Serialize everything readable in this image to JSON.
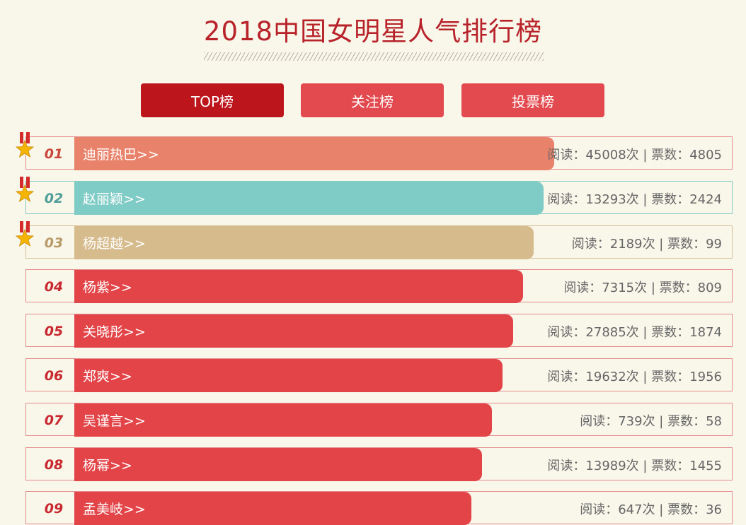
{
  "title": "2018中国女明星人气排行榜",
  "tabs": [
    {
      "label": "TOP榜",
      "active": true
    },
    {
      "label": "关注榜",
      "active": false
    },
    {
      "label": "投票榜",
      "active": false
    }
  ],
  "colors": {
    "title": "#b8232a",
    "tab_active": "#bd151c",
    "tab_inactive": "#e24a4f",
    "row_border": "#e58c8f",
    "medal_ribbon": "#d42b2b",
    "medal_star": "#f4b400"
  },
  "rankings": [
    {
      "rank": "01",
      "name": "迪丽热巴>>",
      "stats": "阅读：45008次 | 票数：4805",
      "bar_color": "#e9826a",
      "rank_color": "#c9473a",
      "medal": true,
      "border_color": "#e58c8f"
    },
    {
      "rank": "02",
      "name": "赵丽颖>>",
      "stats": "阅读：13293次 | 票数：2424",
      "bar_color": "#7fcbc5",
      "rank_color": "#4f9e99",
      "medal": true,
      "border_color": "#86cbc4"
    },
    {
      "rank": "03",
      "name": "杨超越>>",
      "stats": "阅读：2189次 | 票数：99",
      "bar_color": "#d6bb8c",
      "rank_color": "#b79a66",
      "medal": true,
      "border_color": "#d7c296"
    },
    {
      "rank": "04",
      "name": "杨紫>>",
      "stats": "阅读：7315次 | 票数：809",
      "bar_color": "#e24448",
      "rank_color": "#c8282e",
      "medal": false,
      "border_color": "#e58c8f"
    },
    {
      "rank": "05",
      "name": "关晓彤>>",
      "stats": "阅读：27885次 | 票数：1874",
      "bar_color": "#e24448",
      "rank_color": "#c8282e",
      "medal": false,
      "border_color": "#e58c8f"
    },
    {
      "rank": "06",
      "name": "郑爽>>",
      "stats": "阅读：19632次 | 票数：1956",
      "bar_color": "#e24448",
      "rank_color": "#c8282e",
      "medal": false,
      "border_color": "#e58c8f"
    },
    {
      "rank": "07",
      "name": "吴谨言>>",
      "stats": "阅读：739次 | 票数：58",
      "bar_color": "#e24448",
      "rank_color": "#c8282e",
      "medal": false,
      "border_color": "#e58c8f"
    },
    {
      "rank": "08",
      "name": "杨幂>>",
      "stats": "阅读：13989次 | 票数：1455",
      "bar_color": "#e24448",
      "rank_color": "#c8282e",
      "medal": false,
      "border_color": "#e58c8f"
    },
    {
      "rank": "09",
      "name": "孟美岐>>",
      "stats": "阅读：647次 | 票数：36",
      "bar_color": "#e24448",
      "rank_color": "#c8282e",
      "medal": false,
      "border_color": "#e58c8f"
    }
  ]
}
